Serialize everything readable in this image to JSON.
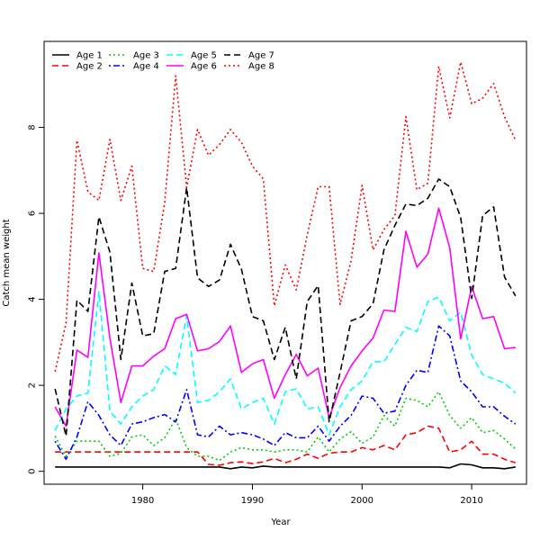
{
  "chart_data": {
    "type": "line",
    "title": "",
    "xlabel": "Year",
    "ylabel": "Catch mean weight",
    "xlim": [
      1971,
      2015
    ],
    "ylim": [
      -0.3,
      10.0
    ],
    "x_ticks": [
      1980,
      1990,
      2000,
      2010
    ],
    "y_ticks": [
      0,
      2,
      4,
      6,
      8
    ],
    "grid": false,
    "legend_position": "top-left",
    "x": [
      1972,
      1973,
      1974,
      1975,
      1976,
      1977,
      1978,
      1979,
      1980,
      1981,
      1982,
      1983,
      1984,
      1985,
      1986,
      1987,
      1988,
      1989,
      1990,
      1991,
      1992,
      1993,
      1994,
      1995,
      1996,
      1997,
      1998,
      1999,
      2000,
      2001,
      2002,
      2003,
      2004,
      2005,
      2006,
      2007,
      2008,
      2009,
      2010,
      2011,
      2012,
      2013,
      2014
    ],
    "series": [
      {
        "name": "Age 1",
        "color": "#000000",
        "dash": "solid",
        "values": [
          0.1,
          0.1,
          0.1,
          0.1,
          0.1,
          0.1,
          0.1,
          0.1,
          0.1,
          0.1,
          0.1,
          0.1,
          0.1,
          0.1,
          0.1,
          0.1,
          0.06,
          0.1,
          0.08,
          0.12,
          0.1,
          0.1,
          0.1,
          0.1,
          0.1,
          0.1,
          0.1,
          0.1,
          0.1,
          0.1,
          0.1,
          0.1,
          0.1,
          0.1,
          0.1,
          0.1,
          0.08,
          0.17,
          0.15,
          0.08,
          0.08,
          0.06,
          0.1
        ]
      },
      {
        "name": "Age 2",
        "color": "#ff0000",
        "dash": "longdash",
        "values": [
          0.45,
          0.45,
          0.45,
          0.45,
          0.45,
          0.45,
          0.45,
          0.45,
          0.45,
          0.45,
          0.45,
          0.45,
          0.45,
          0.45,
          0.16,
          0.14,
          0.2,
          0.22,
          0.18,
          0.22,
          0.3,
          0.2,
          0.28,
          0.4,
          0.3,
          0.42,
          0.45,
          0.45,
          0.55,
          0.5,
          0.6,
          0.5,
          0.85,
          0.9,
          1.05,
          1.0,
          0.45,
          0.5,
          0.7,
          0.4,
          0.4,
          0.28,
          0.2
        ]
      },
      {
        "name": "Age 3",
        "color": "#00cd00",
        "dash": "dotted",
        "values": [
          0.82,
          0.35,
          0.7,
          0.7,
          0.7,
          0.35,
          0.42,
          0.8,
          0.85,
          0.6,
          0.78,
          1.22,
          0.55,
          0.35,
          0.35,
          0.25,
          0.45,
          0.55,
          0.5,
          0.5,
          0.45,
          0.5,
          0.5,
          0.45,
          0.8,
          0.45,
          0.75,
          0.92,
          0.65,
          0.8,
          1.3,
          1.05,
          1.7,
          1.65,
          1.5,
          1.85,
          1.3,
          1.0,
          1.25,
          0.9,
          0.95,
          0.75,
          0.52
        ]
      },
      {
        "name": "Age 4",
        "color": "#0000ff",
        "dash": "dotdash",
        "values": [
          0.7,
          0.28,
          0.8,
          1.62,
          1.3,
          0.85,
          0.6,
          1.1,
          1.15,
          1.25,
          1.32,
          1.15,
          1.9,
          0.85,
          0.8,
          1.05,
          0.85,
          0.9,
          0.85,
          0.75,
          0.6,
          0.9,
          0.78,
          0.78,
          1.05,
          0.7,
          1.05,
          1.3,
          1.75,
          1.7,
          1.35,
          1.4,
          2.0,
          2.35,
          2.3,
          3.38,
          3.15,
          2.1,
          1.85,
          1.5,
          1.5,
          1.28,
          1.1
        ]
      },
      {
        "name": "Age 5",
        "color": "#00ffff",
        "dash": "longdash",
        "values": [
          0.95,
          1.45,
          1.75,
          1.82,
          4.18,
          1.4,
          1.1,
          1.5,
          1.75,
          1.9,
          2.45,
          2.25,
          3.62,
          1.6,
          1.65,
          1.85,
          2.15,
          1.45,
          1.6,
          1.7,
          1.1,
          1.85,
          1.92,
          1.45,
          1.5,
          0.85,
          1.5,
          1.9,
          2.1,
          2.55,
          2.55,
          2.95,
          3.35,
          3.25,
          3.95,
          4.05,
          3.5,
          3.7,
          2.7,
          2.25,
          2.15,
          2.05,
          1.82
        ]
      },
      {
        "name": "Age 6",
        "color": "#ff00ff",
        "dash": "solid",
        "values": [
          1.5,
          1.05,
          2.82,
          2.65,
          5.08,
          3.1,
          1.6,
          2.45,
          2.45,
          2.68,
          2.85,
          3.55,
          3.65,
          2.8,
          2.85,
          3.02,
          3.38,
          2.3,
          2.5,
          2.6,
          1.7,
          2.25,
          2.72,
          2.22,
          2.4,
          1.25,
          1.95,
          2.45,
          2.8,
          3.1,
          3.75,
          3.72,
          5.58,
          4.75,
          5.05,
          6.12,
          5.2,
          3.08,
          4.3,
          3.55,
          3.6,
          2.85,
          2.88
        ]
      },
      {
        "name": "Age 7",
        "color": "#000000",
        "dash": "longdash",
        "values": [
          1.92,
          0.82,
          3.98,
          3.72,
          5.92,
          5.1,
          2.6,
          4.38,
          3.15,
          3.2,
          4.65,
          4.72,
          6.6,
          4.5,
          4.3,
          4.45,
          5.28,
          4.7,
          3.6,
          3.5,
          2.6,
          3.35,
          2.15,
          3.95,
          4.32,
          1.15,
          2.3,
          3.5,
          3.6,
          3.9,
          5.15,
          5.72,
          6.22,
          6.18,
          6.35,
          6.8,
          6.62,
          5.9,
          4.02,
          5.95,
          6.15,
          4.52,
          4.08
        ]
      },
      {
        "name": "Age 8",
        "color": "#ff0000",
        "dash": "dotted",
        "values": [
          2.32,
          3.45,
          7.7,
          6.5,
          6.3,
          7.72,
          6.3,
          7.1,
          4.72,
          4.65,
          6.25,
          9.2,
          6.6,
          7.95,
          7.35,
          7.6,
          7.95,
          7.65,
          7.1,
          6.8,
          3.85,
          4.8,
          4.22,
          5.5,
          6.62,
          6.62,
          3.88,
          4.9,
          6.65,
          5.15,
          5.62,
          5.95,
          8.25,
          6.55,
          6.7,
          9.42,
          8.22,
          9.52,
          8.55,
          8.68,
          9.02,
          8.25,
          7.7
        ]
      }
    ]
  }
}
